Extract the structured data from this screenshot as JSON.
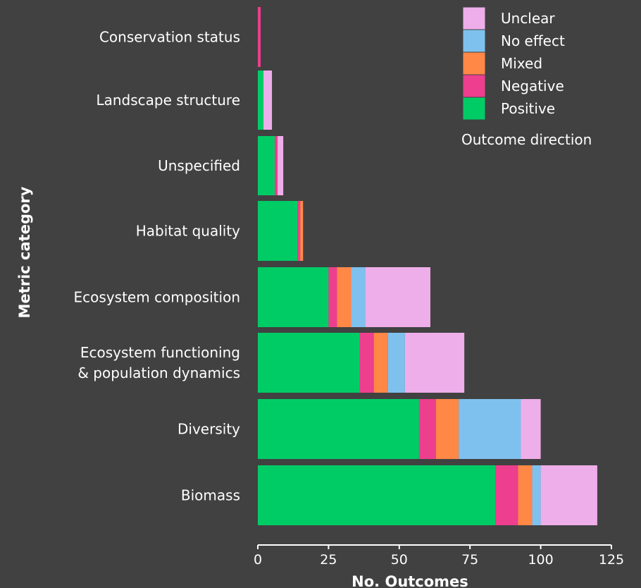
{
  "chart_data": {
    "type": "bar",
    "orientation": "horizontal",
    "stacked": true,
    "xlabel": "No. Outcomes",
    "ylabel": "Metric category",
    "xlim": [
      0,
      125
    ],
    "xticks": [
      0,
      25,
      50,
      75,
      100,
      125
    ],
    "grid": false,
    "legend_title": "Outcome direction",
    "legend_position": "top-right",
    "legend_order": [
      "Unclear",
      "No effect",
      "Mixed",
      "Negative",
      "Positive"
    ],
    "categories": [
      {
        "label": [
          "Conservation status"
        ]
      },
      {
        "label": [
          "Landscape structure"
        ]
      },
      {
        "label": [
          "Unspecified"
        ]
      },
      {
        "label": [
          "Habitat quality"
        ]
      },
      {
        "label": [
          "Ecosystem composition"
        ]
      },
      {
        "label": [
          "Ecosystem functioning",
          "& population dynamics"
        ]
      },
      {
        "label": [
          "Diversity"
        ]
      },
      {
        "label": [
          "Biomass"
        ]
      }
    ],
    "series": [
      {
        "name": "Positive",
        "color": "#00cc66",
        "values": [
          0,
          2,
          6,
          14,
          25,
          36,
          57,
          84
        ]
      },
      {
        "name": "Negative",
        "color": "#ee3e8e",
        "values": [
          1,
          0,
          1,
          1,
          3,
          5,
          6,
          8
        ]
      },
      {
        "name": "Mixed",
        "color": "#ff8847",
        "values": [
          0,
          0,
          0,
          1,
          5,
          5,
          8,
          5
        ]
      },
      {
        "name": "No effect",
        "color": "#7fc1ee",
        "values": [
          0,
          0,
          0,
          0,
          5,
          6,
          22,
          3
        ]
      },
      {
        "name": "Unclear",
        "color": "#eeaeea",
        "values": [
          0,
          3,
          2,
          0,
          23,
          21,
          7,
          20
        ]
      }
    ]
  }
}
